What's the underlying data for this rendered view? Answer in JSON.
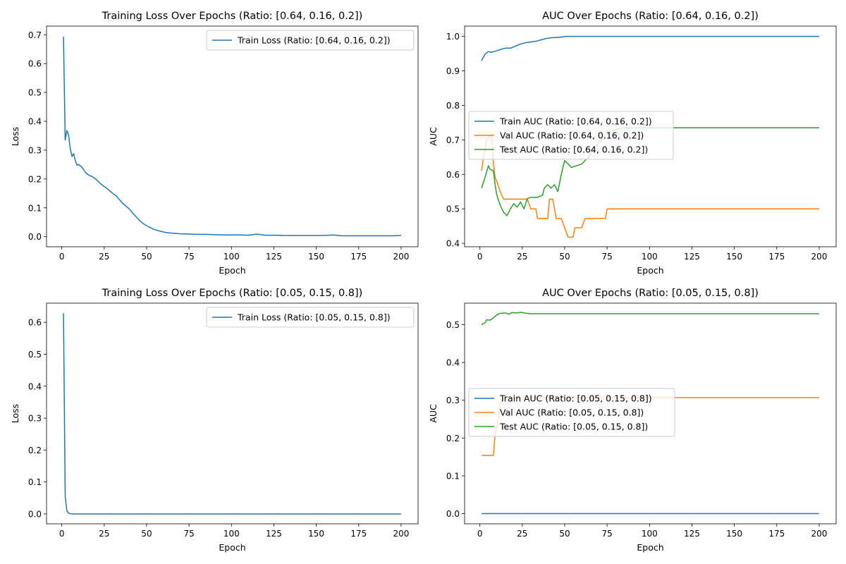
{
  "chart_data": [
    {
      "type": "line",
      "title": "Training Loss Over Epochs (Ratio: [0.64, 0.16, 0.2])",
      "xlabel": "Epoch",
      "ylabel": "Loss",
      "xlim": [
        -9,
        210
      ],
      "ylim": [
        -0.035,
        0.73
      ],
      "xticks": [
        0,
        25,
        50,
        75,
        100,
        125,
        150,
        175,
        200
      ],
      "yticks": [
        0.0,
        0.1,
        0.2,
        0.3,
        0.4,
        0.5,
        0.6,
        0.7
      ],
      "ytick_decimals": 1,
      "legend_position": "upper-right",
      "colors": {
        "train": "#1f77b4"
      },
      "series": [
        {
          "name": "Train Loss (Ratio: [0.64, 0.16, 0.2])",
          "color": "#1f77b4",
          "points": [
            [
              1,
              0.693
            ],
            [
              2,
              0.335
            ],
            [
              3,
              0.368
            ],
            [
              4,
              0.352
            ],
            [
              5,
              0.305
            ],
            [
              6,
              0.278
            ],
            [
              7,
              0.288
            ],
            [
              8,
              0.262
            ],
            [
              9,
              0.248
            ],
            [
              10,
              0.25
            ],
            [
              12,
              0.24
            ],
            [
              14,
              0.222
            ],
            [
              16,
              0.213
            ],
            [
              18,
              0.208
            ],
            [
              20,
              0.2
            ],
            [
              22,
              0.188
            ],
            [
              24,
              0.178
            ],
            [
              26,
              0.17
            ],
            [
              28,
              0.16
            ],
            [
              30,
              0.15
            ],
            [
              32,
              0.142
            ],
            [
              34,
              0.128
            ],
            [
              36,
              0.115
            ],
            [
              38,
              0.105
            ],
            [
              40,
              0.095
            ],
            [
              42,
              0.08
            ],
            [
              44,
              0.068
            ],
            [
              46,
              0.055
            ],
            [
              48,
              0.045
            ],
            [
              50,
              0.038
            ],
            [
              52,
              0.032
            ],
            [
              54,
              0.026
            ],
            [
              56,
              0.022
            ],
            [
              58,
              0.019
            ],
            [
              60,
              0.016
            ],
            [
              62,
              0.014
            ],
            [
              65,
              0.012
            ],
            [
              70,
              0.01
            ],
            [
              75,
              0.009
            ],
            [
              80,
              0.008
            ],
            [
              85,
              0.008
            ],
            [
              90,
              0.007
            ],
            [
              95,
              0.006
            ],
            [
              100,
              0.006
            ],
            [
              105,
              0.006
            ],
            [
              110,
              0.005
            ],
            [
              115,
              0.009
            ],
            [
              120,
              0.005
            ],
            [
              125,
              0.005
            ],
            [
              130,
              0.004
            ],
            [
              135,
              0.004
            ],
            [
              140,
              0.004
            ],
            [
              145,
              0.004
            ],
            [
              150,
              0.004
            ],
            [
              155,
              0.004
            ],
            [
              160,
              0.006
            ],
            [
              165,
              0.003
            ],
            [
              170,
              0.003
            ],
            [
              175,
              0.003
            ],
            [
              180,
              0.003
            ],
            [
              185,
              0.003
            ],
            [
              190,
              0.003
            ],
            [
              195,
              0.003
            ],
            [
              200,
              0.004
            ]
          ]
        }
      ]
    },
    {
      "type": "line",
      "title": "AUC Over Epochs (Ratio: [0.64, 0.16, 0.2])",
      "xlabel": "Epoch",
      "ylabel": "AUC",
      "xlim": [
        -9,
        210
      ],
      "ylim": [
        0.39,
        1.03
      ],
      "xticks": [
        0,
        25,
        50,
        75,
        100,
        125,
        150,
        175,
        200
      ],
      "yticks": [
        0.4,
        0.5,
        0.6,
        0.7,
        0.8,
        0.9,
        1.0
      ],
      "ytick_decimals": 1,
      "legend_position": "center-left",
      "series": [
        {
          "name": "Train AUC (Ratio: [0.64, 0.16, 0.2])",
          "color": "#1f77b4",
          "points": [
            [
              1,
              0.93
            ],
            [
              3,
              0.948
            ],
            [
              5,
              0.956
            ],
            [
              7,
              0.954
            ],
            [
              9,
              0.957
            ],
            [
              12,
              0.962
            ],
            [
              15,
              0.966
            ],
            [
              18,
              0.966
            ],
            [
              21,
              0.972
            ],
            [
              24,
              0.978
            ],
            [
              27,
              0.982
            ],
            [
              30,
              0.984
            ],
            [
              33,
              0.986
            ],
            [
              36,
              0.99
            ],
            [
              39,
              0.994
            ],
            [
              42,
              0.996
            ],
            [
              45,
              0.997
            ],
            [
              48,
              0.998
            ],
            [
              51,
              1.0
            ],
            [
              75,
              1.0
            ],
            [
              100,
              1.0
            ],
            [
              150,
              1.0
            ],
            [
              200,
              1.0
            ]
          ]
        },
        {
          "name": "Val AUC (Ratio: [0.64, 0.16, 0.2])",
          "color": "#ff7f0e",
          "points": [
            [
              1,
              0.61
            ],
            [
              2,
              0.645
            ],
            [
              4,
              0.7
            ],
            [
              6,
              0.71
            ],
            [
              7,
              0.715
            ],
            [
              8,
              0.63
            ],
            [
              9,
              0.59
            ],
            [
              10,
              0.58
            ],
            [
              12,
              0.55
            ],
            [
              14,
              0.528
            ],
            [
              16,
              0.528
            ],
            [
              20,
              0.528
            ],
            [
              24,
              0.528
            ],
            [
              28,
              0.528
            ],
            [
              30,
              0.5
            ],
            [
              33,
              0.5
            ],
            [
              34,
              0.472
            ],
            [
              36,
              0.472
            ],
            [
              40,
              0.472
            ],
            [
              41,
              0.528
            ],
            [
              43,
              0.528
            ],
            [
              45,
              0.472
            ],
            [
              48,
              0.472
            ],
            [
              50,
              0.445
            ],
            [
              52,
              0.418
            ],
            [
              55,
              0.418
            ],
            [
              56,
              0.445
            ],
            [
              60,
              0.445
            ],
            [
              62,
              0.472
            ],
            [
              66,
              0.472
            ],
            [
              70,
              0.472
            ],
            [
              74,
              0.472
            ],
            [
              75,
              0.5
            ],
            [
              100,
              0.5
            ],
            [
              150,
              0.5
            ],
            [
              200,
              0.5
            ]
          ]
        },
        {
          "name": "Test AUC (Ratio: [0.64, 0.16, 0.2])",
          "color": "#2ca02c",
          "points": [
            [
              1,
              0.56
            ],
            [
              3,
              0.59
            ],
            [
              5,
              0.625
            ],
            [
              6,
              0.615
            ],
            [
              8,
              0.61
            ],
            [
              9,
              0.57
            ],
            [
              10,
              0.54
            ],
            [
              12,
              0.51
            ],
            [
              14,
              0.49
            ],
            [
              16,
              0.48
            ],
            [
              18,
              0.5
            ],
            [
              20,
              0.515
            ],
            [
              22,
              0.505
            ],
            [
              24,
              0.52
            ],
            [
              26,
              0.5
            ],
            [
              28,
              0.53
            ],
            [
              30,
              0.533
            ],
            [
              34,
              0.533
            ],
            [
              37,
              0.54
            ],
            [
              38,
              0.56
            ],
            [
              40,
              0.57
            ],
            [
              42,
              0.56
            ],
            [
              44,
              0.57
            ],
            [
              46,
              0.55
            ],
            [
              48,
              0.6
            ],
            [
              50,
              0.64
            ],
            [
              52,
              0.63
            ],
            [
              54,
              0.62
            ],
            [
              57,
              0.625
            ],
            [
              60,
              0.63
            ],
            [
              64,
              0.65
            ],
            [
              68,
              0.68
            ],
            [
              72,
              0.7
            ],
            [
              76,
              0.72
            ],
            [
              80,
              0.73
            ],
            [
              85,
              0.735
            ],
            [
              100,
              0.735
            ],
            [
              150,
              0.735
            ],
            [
              200,
              0.735
            ]
          ]
        }
      ]
    },
    {
      "type": "line",
      "title": "Training Loss Over Epochs (Ratio: [0.05, 0.15, 0.8])",
      "xlabel": "Epoch",
      "ylabel": "Loss",
      "xlim": [
        -9,
        210
      ],
      "ylim": [
        -0.031,
        0.66
      ],
      "xticks": [
        0,
        25,
        50,
        75,
        100,
        125,
        150,
        175,
        200
      ],
      "yticks": [
        0.0,
        0.1,
        0.2,
        0.3,
        0.4,
        0.5,
        0.6
      ],
      "ytick_decimals": 1,
      "legend_position": "upper-right",
      "series": [
        {
          "name": "Train Loss (Ratio: [0.05, 0.15, 0.8])",
          "color": "#1f77b4",
          "points": [
            [
              1,
              0.628
            ],
            [
              2,
              0.055
            ],
            [
              3,
              0.01
            ],
            [
              4,
              0.002
            ],
            [
              5,
              0.001
            ],
            [
              6,
              0.0
            ],
            [
              10,
              0.0
            ],
            [
              50,
              0.0
            ],
            [
              100,
              0.0
            ],
            [
              150,
              0.0
            ],
            [
              200,
              0.0
            ]
          ]
        }
      ]
    },
    {
      "type": "line",
      "title": "AUC Over Epochs (Ratio: [0.05, 0.15, 0.8])",
      "xlabel": "Epoch",
      "ylabel": "AUC",
      "xlim": [
        -9,
        210
      ],
      "ylim": [
        -0.027,
        0.557
      ],
      "xticks": [
        0,
        25,
        50,
        75,
        100,
        125,
        150,
        175,
        200
      ],
      "yticks": [
        0.0,
        0.1,
        0.2,
        0.3,
        0.4,
        0.5
      ],
      "ytick_decimals": 1,
      "legend_position": "center-left",
      "series": [
        {
          "name": "Train AUC (Ratio: [0.05, 0.15, 0.8])",
          "color": "#1f77b4",
          "points": [
            [
              1,
              0.0
            ],
            [
              50,
              0.0
            ],
            [
              100,
              0.0
            ],
            [
              150,
              0.0
            ],
            [
              200,
              0.0
            ]
          ]
        },
        {
          "name": "Val AUC (Ratio: [0.05, 0.15, 0.8])",
          "color": "#ff7f0e",
          "points": [
            [
              1,
              0.154
            ],
            [
              8,
              0.154
            ],
            [
              9,
              0.21
            ],
            [
              11,
              0.25
            ],
            [
              12,
              0.29
            ],
            [
              14,
              0.307
            ],
            [
              30,
              0.307
            ],
            [
              100,
              0.307
            ],
            [
              200,
              0.307
            ]
          ]
        },
        {
          "name": "Test AUC (Ratio: [0.05, 0.15, 0.8])",
          "color": "#2ca02c",
          "points": [
            [
              1,
              0.5
            ],
            [
              3,
              0.505
            ],
            [
              4,
              0.513
            ],
            [
              6,
              0.512
            ],
            [
              8,
              0.518
            ],
            [
              10,
              0.526
            ],
            [
              12,
              0.53
            ],
            [
              15,
              0.531
            ],
            [
              17,
              0.528
            ],
            [
              19,
              0.532
            ],
            [
              22,
              0.531
            ],
            [
              24,
              0.533
            ],
            [
              26,
              0.531
            ],
            [
              28,
              0.53
            ],
            [
              30,
              0.529
            ],
            [
              100,
              0.529
            ],
            [
              200,
              0.529
            ]
          ]
        }
      ]
    }
  ]
}
